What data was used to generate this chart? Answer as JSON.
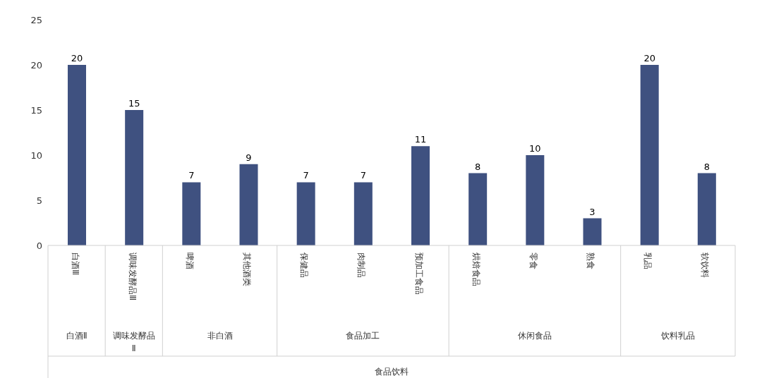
{
  "chart_data": {
    "type": "bar",
    "categories": [
      "白酒Ⅲ",
      "调味发酵品Ⅲ",
      "啤酒",
      "其他酒类",
      "保健品",
      "肉制品",
      "预加工食品",
      "烘焙食品",
      "零食",
      "熟食",
      "乳品",
      "软饮料"
    ],
    "values": [
      20,
      15,
      7,
      9,
      7,
      7,
      11,
      8,
      10,
      3,
      20,
      8
    ],
    "color": "#3f5180",
    "ylim": [
      0,
      25
    ],
    "yticks": [
      0,
      5,
      10,
      15,
      20,
      25
    ],
    "data_labels": true,
    "grid": false,
    "legend": false,
    "annotations": [
      "白酒Ⅱ",
      "调味发酵品Ⅱ",
      "非白酒",
      "食品加工",
      "休闲食品",
      "饮料乳品",
      "食品饮料"
    ]
  }
}
